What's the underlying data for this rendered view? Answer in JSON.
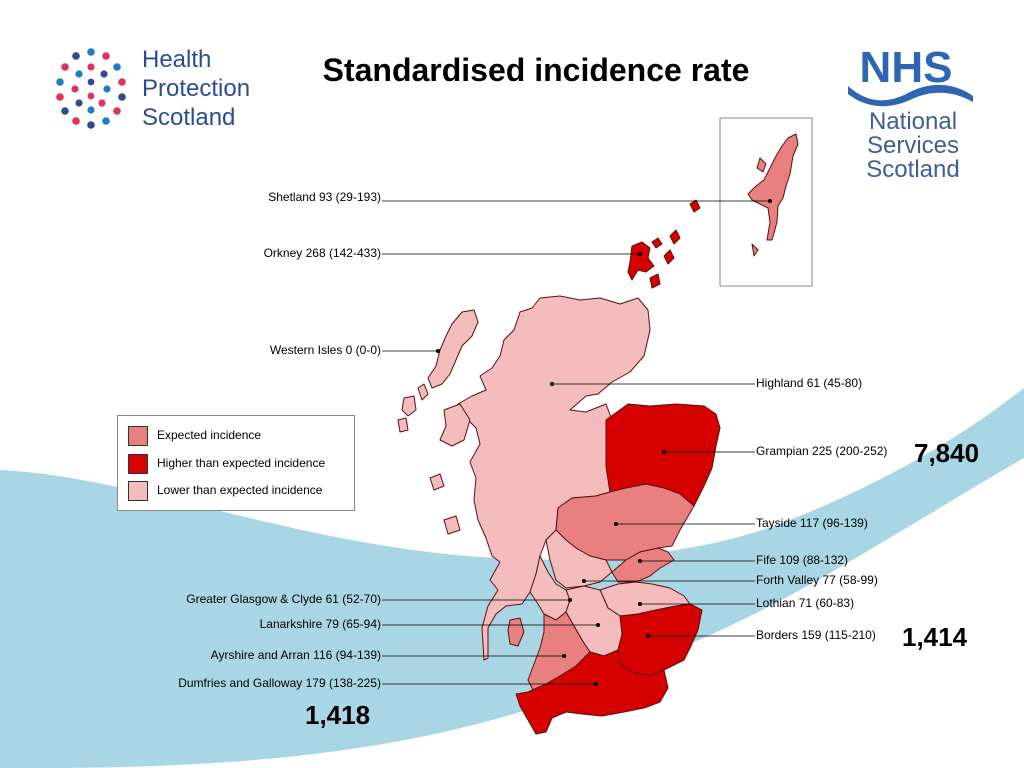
{
  "slide": {
    "title": "Standardised incidence rate"
  },
  "logos": {
    "hps": {
      "lines": [
        "Health",
        "Protection",
        "Scotland"
      ]
    },
    "nhs": {
      "mark": "NHS",
      "lines": [
        "National",
        "Services",
        "Scotland"
      ]
    }
  },
  "colors": {
    "expected": "#e88080",
    "higher": "#d50000",
    "lower": "#f4bcbc",
    "wave": "#a9d6e4",
    "hps_blue": "#2b4d8f",
    "nhs_blue": "#2f66b3"
  },
  "legend": {
    "items": [
      {
        "label": "Expected incidence",
        "category": "expected"
      },
      {
        "label": "Higher than expected incidence",
        "category": "higher"
      },
      {
        "label": "Lower than expected incidence",
        "category": "lower"
      }
    ]
  },
  "regions": [
    {
      "name": "Shetland",
      "label": "Shetland 93 (29-193)",
      "rate": 93,
      "ci": [
        29,
        193
      ],
      "category": "expected"
    },
    {
      "name": "Orkney",
      "label": "Orkney 268 (142-433)",
      "rate": 268,
      "ci": [
        142,
        433
      ],
      "category": "higher"
    },
    {
      "name": "Western Isles",
      "label": "Western Isles 0 (0-0)",
      "rate": 0,
      "ci": [
        0,
        0
      ],
      "category": "lower"
    },
    {
      "name": "Highland",
      "label": "Highland 61 (45-80)",
      "rate": 61,
      "ci": [
        45,
        80
      ],
      "category": "lower"
    },
    {
      "name": "Grampian",
      "label": "Grampian 225 (200-252)",
      "rate": 225,
      "ci": [
        200,
        252
      ],
      "category": "higher"
    },
    {
      "name": "Tayside",
      "label": "Tayside 117 (96-139)",
      "rate": 117,
      "ci": [
        96,
        139
      ],
      "category": "expected"
    },
    {
      "name": "Fife",
      "label": "Fife 109 (88-132)",
      "rate": 109,
      "ci": [
        88,
        132
      ],
      "category": "expected"
    },
    {
      "name": "Forth Valley",
      "label": "Forth Valley 77 (58-99)",
      "rate": 77,
      "ci": [
        58,
        99
      ],
      "category": "lower"
    },
    {
      "name": "Lothian",
      "label": "Lothian 71 (60-83)",
      "rate": 71,
      "ci": [
        60,
        83
      ],
      "category": "lower"
    },
    {
      "name": "Borders",
      "label": "Borders 159 (115-210)",
      "rate": 159,
      "ci": [
        115,
        210
      ],
      "category": "higher"
    },
    {
      "name": "Greater Glasgow & Clyde",
      "label": "Greater Glasgow & Clyde 61 (52-70)",
      "rate": 61,
      "ci": [
        52,
        70
      ],
      "category": "lower"
    },
    {
      "name": "Lanarkshire",
      "label": "Lanarkshire 79 (65-94)",
      "rate": 79,
      "ci": [
        65,
        94
      ],
      "category": "lower"
    },
    {
      "name": "Ayrshire and Arran",
      "label": "Ayrshire and Arran 116 (94-139)",
      "rate": 116,
      "ci": [
        94,
        139
      ],
      "category": "expected"
    },
    {
      "name": "Dumfries and Galloway",
      "label": "Dumfries and Galloway 179 (138-225)",
      "rate": 179,
      "ci": [
        138,
        225
      ],
      "category": "higher"
    }
  ],
  "totals": {
    "grampian": "7,840",
    "borders": "1,414",
    "dumfries": "1,418"
  }
}
